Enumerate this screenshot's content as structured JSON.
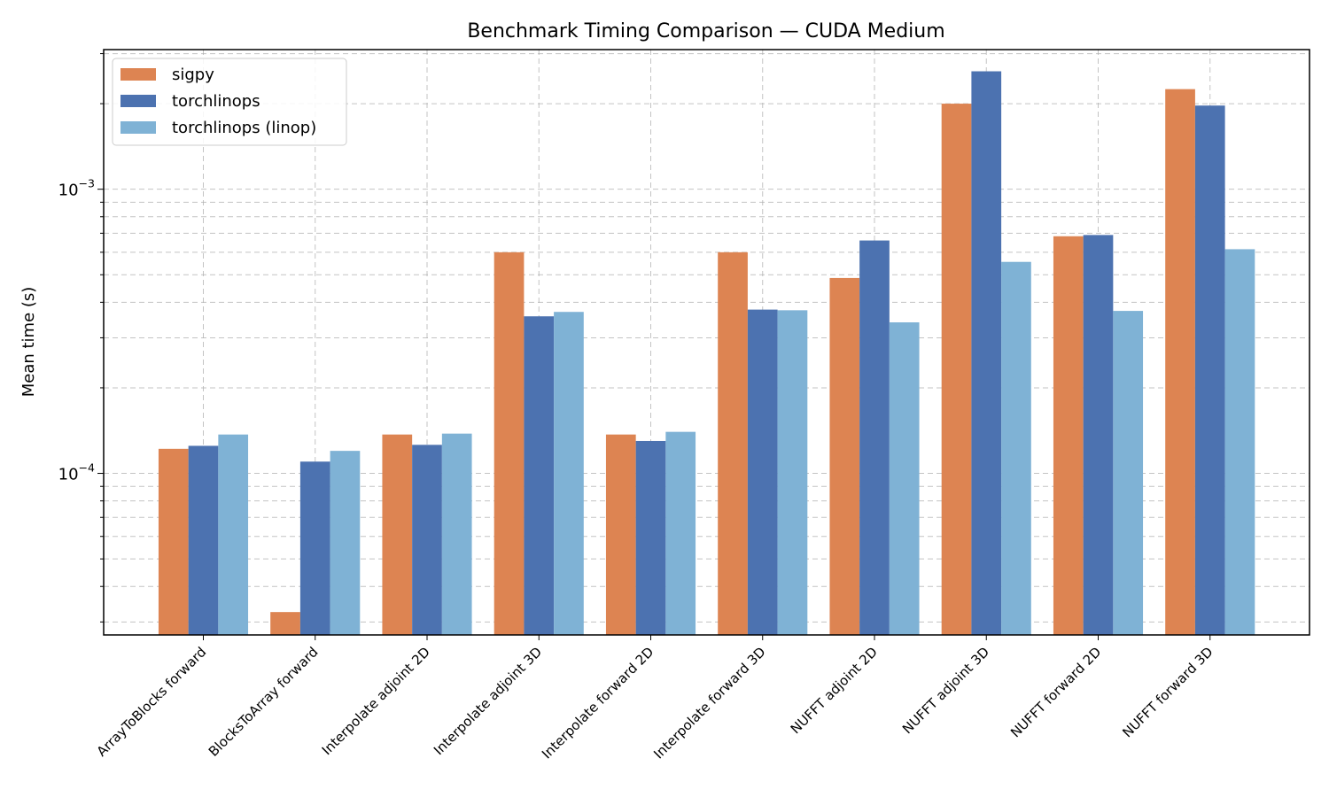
{
  "chart_data": {
    "type": "bar",
    "title": "Benchmark Timing Comparison — CUDA Medium",
    "xlabel": "",
    "ylabel": "Mean time (s)",
    "yscale": "log",
    "ylim": [
      2.7e-05,
      0.0031
    ],
    "yticks": [
      {
        "value": 0.0001,
        "base": "10",
        "exp": "−4"
      },
      {
        "value": 0.001,
        "base": "10",
        "exp": "−3"
      }
    ],
    "grid": true,
    "legend_position": "top-left",
    "categories": [
      "ArrayToBlocks forward",
      "BlocksToArray forward",
      "Interpolate adjoint 2D",
      "Interpolate adjoint 3D",
      "Interpolate forward 2D",
      "Interpolate forward 3D",
      "NUFFT adjoint 2D",
      "NUFFT adjoint 3D",
      "NUFFT forward 2D",
      "NUFFT forward 3D"
    ],
    "series": [
      {
        "name": "sigpy",
        "color": "#dd8452",
        "values": [
          0.000122,
          3.25e-05,
          0.000137,
          0.0006,
          0.000137,
          0.0006,
          0.000487,
          0.002,
          0.000683,
          0.00225
        ]
      },
      {
        "name": "torchlinops",
        "color": "#4c72b0",
        "values": [
          0.000125,
          0.00011,
          0.000126,
          0.000357,
          0.00013,
          0.000377,
          0.00066,
          0.0026,
          0.00069,
          0.00197
        ]
      },
      {
        "name": "torchlinops (linop)",
        "color": "#7fb2d5",
        "values": [
          0.000137,
          0.00012,
          0.000138,
          0.00037,
          0.00014,
          0.000375,
          0.00034,
          0.000555,
          0.000373,
          0.000615
        ]
      }
    ]
  }
}
